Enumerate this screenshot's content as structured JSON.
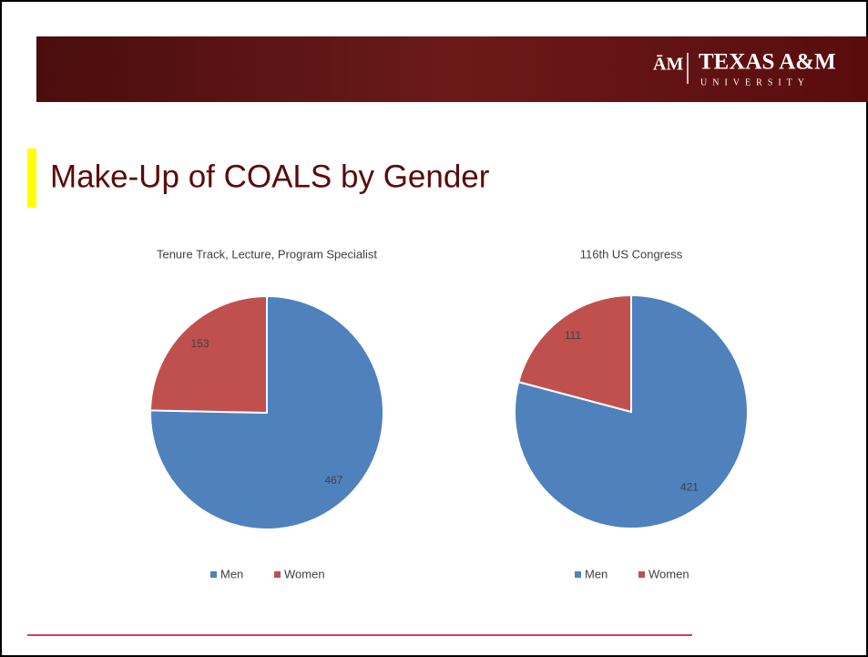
{
  "header": {
    "logo_name": "TEXAS A&M",
    "logo_sub": "UNIVERSITY"
  },
  "title": "Make-Up of COALS by Gender",
  "chart_data": [
    {
      "type": "pie",
      "title": "Tenure Track, Lecture, Program Specialist",
      "categories": [
        "Men",
        "Women"
      ],
      "values": [
        467,
        153
      ],
      "colors": [
        "#4f81bd",
        "#c0504d"
      ],
      "legend": "bottom"
    },
    {
      "type": "pie",
      "title": "116th US Congress",
      "categories": [
        "Men",
        "Women"
      ],
      "values": [
        421,
        111
      ],
      "colors": [
        "#4f81bd",
        "#c0504d"
      ],
      "legend": "bottom"
    }
  ]
}
